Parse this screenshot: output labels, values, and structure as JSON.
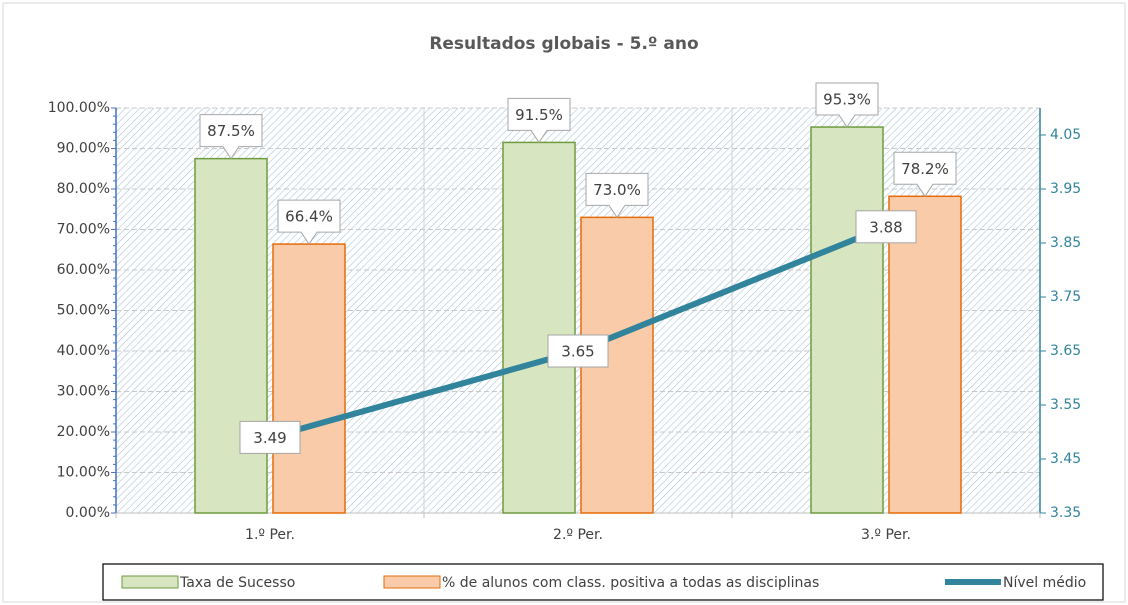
{
  "chart_data": {
    "type": "bar",
    "title": "Resultados globais - 5.º ano",
    "categories": [
      "1.º Per.",
      "2.º Per.",
      "3.º Per."
    ],
    "series": [
      {
        "name": "Taxa de Sucesso",
        "type": "bar",
        "color": "#d7e6c0",
        "edge": "#6e9b3f",
        "values": [
          87.5,
          91.5,
          95.3
        ],
        "value_labels": [
          "87.5%",
          "91.5%",
          "95.3%"
        ]
      },
      {
        "name": "% de alunos com class. positiva a todas as disciplinas",
        "type": "bar",
        "color": "#f9cba8",
        "edge": "#e46c0a",
        "values": [
          66.4,
          73.0,
          78.2
        ],
        "value_labels": [
          "66.4%",
          "73.0%",
          "78.2%"
        ]
      },
      {
        "name": "Nível médio",
        "type": "line",
        "axis": "y2",
        "color": "#31849b",
        "values": [
          3.49,
          3.65,
          3.88
        ]
      }
    ],
    "ylim": [
      0,
      100
    ],
    "yticks": [
      {
        "value": 0,
        "label": "0.00%"
      },
      {
        "value": 10,
        "label": "10.00%"
      },
      {
        "value": 20,
        "label": "20.00%"
      },
      {
        "value": 30,
        "label": "30.00%"
      },
      {
        "value": 40,
        "label": "40.00%"
      },
      {
        "value": 50,
        "label": "50.00%"
      },
      {
        "value": 60,
        "label": "60.00%"
      },
      {
        "value": 70,
        "label": "70.00%"
      },
      {
        "value": 80,
        "label": "80.00%"
      },
      {
        "value": 90,
        "label": "90.00%"
      },
      {
        "value": 100,
        "label": "100.00%"
      }
    ],
    "y2lim": [
      3.35,
      4.1
    ],
    "y2ticks": [
      3.35,
      3.45,
      3.55,
      3.65,
      3.75,
      3.85,
      3.95,
      4.05
    ],
    "grid": true,
    "legend": "bottom"
  }
}
